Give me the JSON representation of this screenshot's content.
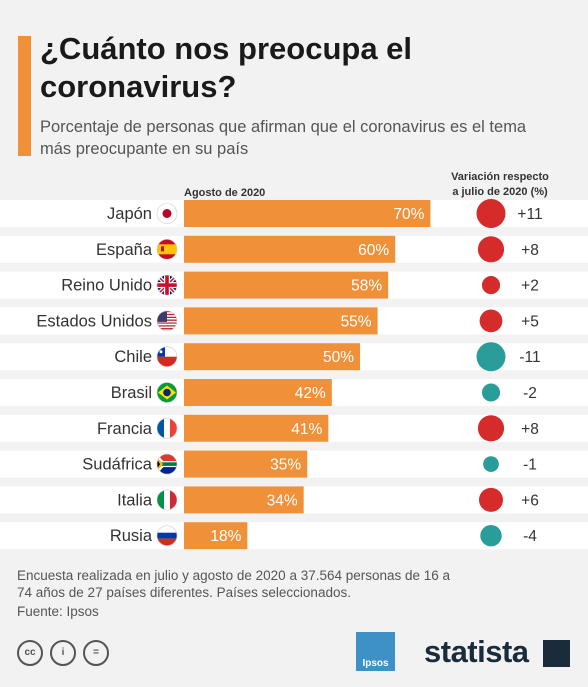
{
  "title": "¿Cuánto nos preocupa el coronavirus?",
  "subtitle": "Porcentaje de personas que afirman que el coronavirus es el tema más preocupante en su país",
  "bar_header": "Agosto de 2020",
  "variation_header_line1": "Variación respecto",
  "variation_header_line2": "a julio de 2020 (%)",
  "footer_note": "Encuesta realizada en julio y agosto de 2020 a 37.564 personas de 16 a 74 años de 27 países diferentes. Países seleccionados.",
  "source": "Fuente: Ipsos",
  "brand_partner": "Ipsos",
  "brand": "statista",
  "license_icons": [
    "cc-icon",
    "person-icon",
    "equals-icon"
  ],
  "colors": {
    "bar": "#f0913a",
    "positive": "#d62b2b",
    "negative": "#2a9d9a",
    "accent": "#f0913a"
  },
  "chart_data": {
    "type": "bar",
    "orientation": "horizontal",
    "categories": [
      "Japón",
      "España",
      "Reino Unido",
      "Estados Unidos",
      "Chile",
      "Brasil",
      "Francia",
      "Sudáfrica",
      "Italia",
      "Rusia"
    ],
    "series": [
      {
        "name": "Agosto de 2020",
        "values": [
          70,
          60,
          58,
          55,
          50,
          42,
          41,
          35,
          34,
          18
        ],
        "labels": [
          "70%",
          "60%",
          "58%",
          "55%",
          "50%",
          "42%",
          "41%",
          "35%",
          "34%",
          "18%"
        ]
      },
      {
        "name": "Variación respecto a julio de 2020 (%)",
        "values": [
          11,
          8,
          2,
          5,
          -11,
          -2,
          8,
          -1,
          6,
          -4
        ],
        "labels": [
          "+11",
          "+8",
          "+2",
          "+5",
          "-11",
          "-2",
          "+8",
          "-1",
          "+6",
          "-4"
        ]
      }
    ],
    "flags": [
      "japan-flag",
      "spain-flag",
      "uk-flag",
      "usa-flag",
      "chile-flag",
      "brazil-flag",
      "france-flag",
      "south-africa-flag",
      "italy-flag",
      "russia-flag"
    ]
  }
}
